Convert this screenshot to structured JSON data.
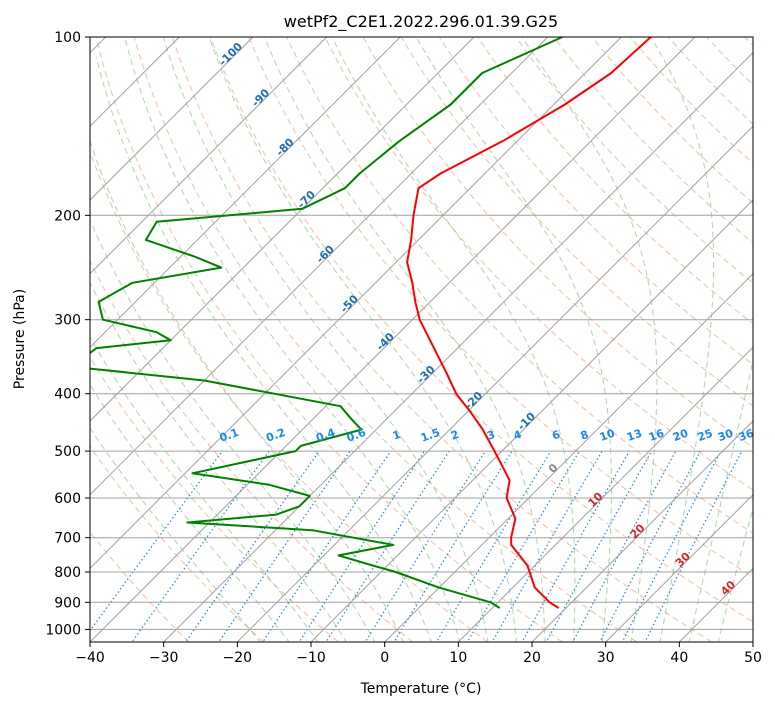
{
  "chart_data": {
    "type": "line",
    "subtype": "skew-t log-p diagram",
    "title": "wetPf2_C2E1.2022.296.01.39.G25",
    "xlabel": "Temperature (°C)",
    "ylabel": "Pressure (hPa)",
    "xlim": [
      -40,
      50
    ],
    "ylim": [
      1050,
      100
    ],
    "yscale": "log",
    "grid": true,
    "x_ticks": [
      -40,
      -30,
      -20,
      -10,
      0,
      10,
      20,
      30,
      40,
      50
    ],
    "x_tick_labels": [
      "−40",
      "−30",
      "−20",
      "−10",
      "0",
      "10",
      "20",
      "30",
      "40",
      "50"
    ],
    "y_ticks": [
      100,
      200,
      300,
      400,
      500,
      600,
      700,
      800,
      900,
      1000
    ],
    "y_tick_labels": [
      "100",
      "200",
      "300",
      "400",
      "500",
      "600",
      "700",
      "800",
      "900",
      "1000"
    ],
    "series": [
      {
        "color": "#ff0000",
        "points": [
          [
            100,
            -46
          ],
          [
            115,
            -46.5
          ],
          [
            130,
            -48.5
          ],
          [
            150,
            -52
          ],
          [
            170,
            -56
          ],
          [
            180,
            -57
          ],
          [
            200,
            -54
          ],
          [
            220,
            -51
          ],
          [
            240,
            -48.5
          ],
          [
            260,
            -45
          ],
          [
            280,
            -42
          ],
          [
            300,
            -39
          ],
          [
            330,
            -34
          ],
          [
            370,
            -28
          ],
          [
            400,
            -24
          ],
          [
            430,
            -19.5
          ],
          [
            460,
            -15.5
          ],
          [
            500,
            -11
          ],
          [
            560,
            -5
          ],
          [
            600,
            -3
          ],
          [
            650,
            1
          ],
          [
            700,
            3
          ],
          [
            720,
            4
          ],
          [
            780,
            9
          ],
          [
            850,
            13
          ],
          [
            900,
            17
          ],
          [
            920,
            19
          ]
        ]
      },
      {
        "color": "#008000",
        "points": [
          [
            100,
            -58
          ],
          [
            115,
            -64
          ],
          [
            130,
            -64
          ],
          [
            150,
            -66
          ],
          [
            170,
            -67
          ],
          [
            180,
            -67
          ],
          [
            195,
            -70
          ],
          [
            205,
            -88
          ],
          [
            220,
            -87
          ],
          [
            235,
            -78
          ],
          [
            245,
            -73
          ],
          [
            260,
            -83
          ],
          [
            280,
            -85
          ],
          [
            300,
            -82
          ],
          [
            315,
            -73
          ],
          [
            325,
            -70
          ],
          [
            335,
            -79
          ],
          [
            360,
            -80
          ],
          [
            380,
            -60
          ],
          [
            420,
            -38
          ],
          [
            440,
            -35
          ],
          [
            460,
            -32
          ],
          [
            490,
            -38
          ],
          [
            500,
            -38
          ],
          [
            545,
            -49
          ],
          [
            570,
            -37
          ],
          [
            595,
            -30
          ],
          [
            620,
            -30
          ],
          [
            640,
            -32
          ],
          [
            660,
            -43
          ],
          [
            680,
            -25
          ],
          [
            720,
            -12
          ],
          [
            750,
            -18
          ],
          [
            780,
            -12
          ],
          [
            800,
            -8
          ],
          [
            850,
            0
          ],
          [
            900,
            9
          ],
          [
            920,
            11
          ]
        ]
      }
    ],
    "isotherm_labels": [
      "-100",
      "-90",
      "-80",
      "-70",
      "-60",
      "-50",
      "-40",
      "-30",
      "-20",
      "-10"
    ],
    "mixing_ratio_labels": [
      "0.1",
      "0.2",
      "0.4",
      "0.6",
      "1",
      "1.5",
      "2",
      "3",
      "4",
      "6",
      "8",
      "10",
      "13",
      "16",
      "20",
      "25",
      "30",
      "36"
    ],
    "temperature_labels": [
      "0",
      "10",
      "20",
      "30",
      "40"
    ],
    "colors": {
      "temperature": "#ff0000",
      "dewpoint": "#008000",
      "dry_adiabat": "#f4a582",
      "moist_adiabat": "#7fbf7b",
      "mixing_ratio": "#1e88e5",
      "isotherm_label": "#1f6fb0",
      "temp_label": "#d62728",
      "grid": "#a0a0a0"
    }
  }
}
